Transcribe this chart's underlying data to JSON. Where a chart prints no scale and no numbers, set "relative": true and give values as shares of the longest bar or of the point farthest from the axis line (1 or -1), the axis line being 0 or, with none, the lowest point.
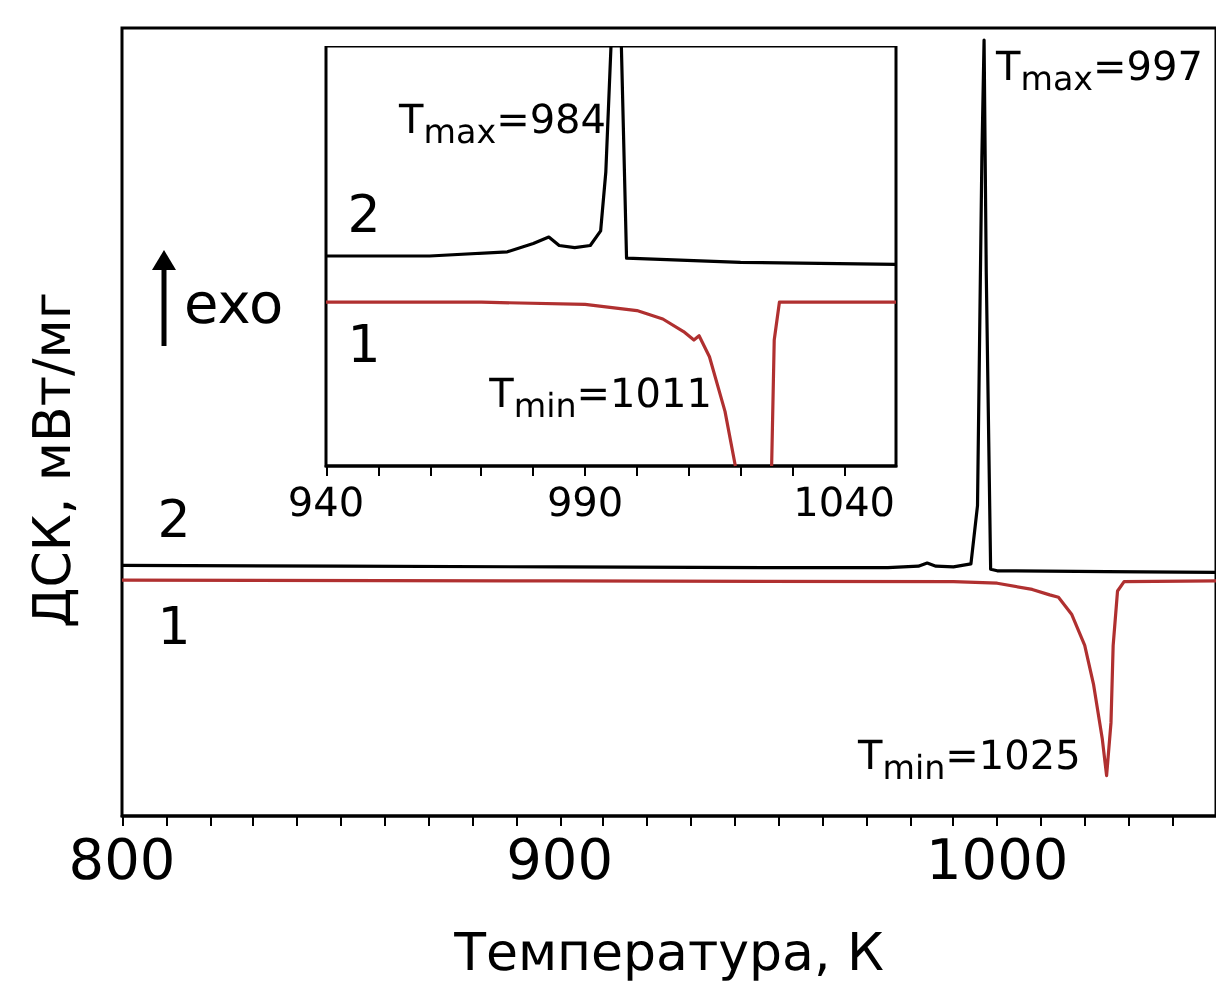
{
  "chart_data": [
    {
      "type": "line",
      "relative": true,
      "marker": "none",
      "xlabel": "Температура, К",
      "ylabel": "ДСК, мВт/мг",
      "xlim": [
        800,
        1050
      ],
      "xticks": [
        800,
        {
          "value": 810,
          "label": null
        },
        {
          "value": 820,
          "label": null
        },
        {
          "value": 830,
          "label": null
        },
        {
          "value": 840,
          "label": null
        },
        {
          "value": 850,
          "label": null
        },
        {
          "value": 860,
          "label": null
        },
        {
          "value": 870,
          "label": null
        },
        {
          "value": 880,
          "label": null
        },
        {
          "value": 890,
          "label": null
        },
        900,
        {
          "value": 910,
          "label": null
        },
        {
          "value": 920,
          "label": null
        },
        {
          "value": 930,
          "label": null
        },
        {
          "value": 940,
          "label": null
        },
        {
          "value": 950,
          "label": null
        },
        {
          "value": 960,
          "label": null
        },
        {
          "value": 970,
          "label": null
        },
        {
          "value": 980,
          "label": null
        },
        {
          "value": 990,
          "label": null
        },
        1000,
        {
          "value": 1010,
          "label": null
        },
        {
          "value": 1020,
          "label": null
        },
        {
          "value": 1030,
          "label": null
        },
        {
          "value": 1040,
          "label": null
        }
      ],
      "series": [
        {
          "name": "2",
          "color": "#000000",
          "x": [
            800,
            850,
            900,
            950,
            975,
            982,
            984,
            986,
            990,
            994,
            995.5,
            996.5,
            997,
            997.5,
            998.5,
            1000,
            1025,
            1050
          ],
          "values": [
            0.323,
            0.322,
            0.321,
            0.32,
            0.32,
            0.322,
            0.326,
            0.322,
            0.321,
            0.325,
            0.4,
            0.85,
            1,
            0.7,
            0.318,
            0.316,
            0.315,
            0.314
          ]
        },
        {
          "name": "1",
          "color": "#b03030",
          "x": [
            800,
            900,
            990,
            1000,
            1008,
            1012,
            1014,
            1017,
            1020,
            1022,
            1024,
            1025,
            1026,
            1026.5,
            1027.5,
            1029,
            1050
          ],
          "values": [
            0.304,
            0.303,
            0.302,
            0.3,
            0.292,
            0.285,
            0.282,
            0.26,
            0.22,
            0.17,
            0.1,
            0.052,
            0.12,
            0.22,
            0.29,
            0.302,
            0.303
          ]
        }
      ],
      "annotations": [
        {
          "text": "T$_{max}$=997",
          "x": 997,
          "y": 1
        },
        {
          "text": "T$_{min}$=1025",
          "x": 1025,
          "y": 0.052
        },
        "exo"
      ]
    },
    {
      "type": "line",
      "relative": true,
      "marker": "none",
      "xlim": [
        940,
        1050
      ],
      "xticks": [
        940,
        {
          "value": 950,
          "label": null
        },
        {
          "value": 960,
          "label": null
        },
        {
          "value": 970,
          "label": null
        },
        {
          "value": 980,
          "label": null
        },
        990,
        {
          "value": 1000,
          "label": null
        },
        {
          "value": 1010,
          "label": null
        },
        {
          "value": 1020,
          "label": null
        },
        {
          "value": 1030,
          "label": null
        },
        1040
      ],
      "series": [
        {
          "name": "2",
          "color": "#000000",
          "x": [
            940,
            960,
            975,
            980,
            983,
            985,
            988,
            991,
            993,
            994,
            995,
            996,
            997,
            998,
            1020,
            1050
          ],
          "values": [
            0.5,
            0.5,
            0.51,
            0.53,
            0.545,
            0.525,
            0.52,
            0.525,
            0.56,
            0.7,
            1,
            null,
            1,
            0.495,
            0.485,
            0.48
          ]
        },
        {
          "name": "1",
          "color": "#b03030",
          "x": [
            940,
            970,
            990,
            1000,
            1005,
            1009,
            1011,
            1012,
            1014,
            1017,
            1019,
            1022,
            1026,
            1026.5,
            1027.5,
            1050
          ],
          "values": [
            0.39,
            0.39,
            0.385,
            0.37,
            0.35,
            0.32,
            0.3,
            0.31,
            0.26,
            0.13,
            0,
            null,
            0,
            0.3,
            0.39,
            0.39
          ]
        }
      ],
      "annotations": [
        {
          "text": "T$_{max}$=984",
          "x": 984,
          "y": 0.545
        },
        {
          "text": "T$_{min}$=1011",
          "x": 1011,
          "y": 0.3
        }
      ]
    }
  ]
}
